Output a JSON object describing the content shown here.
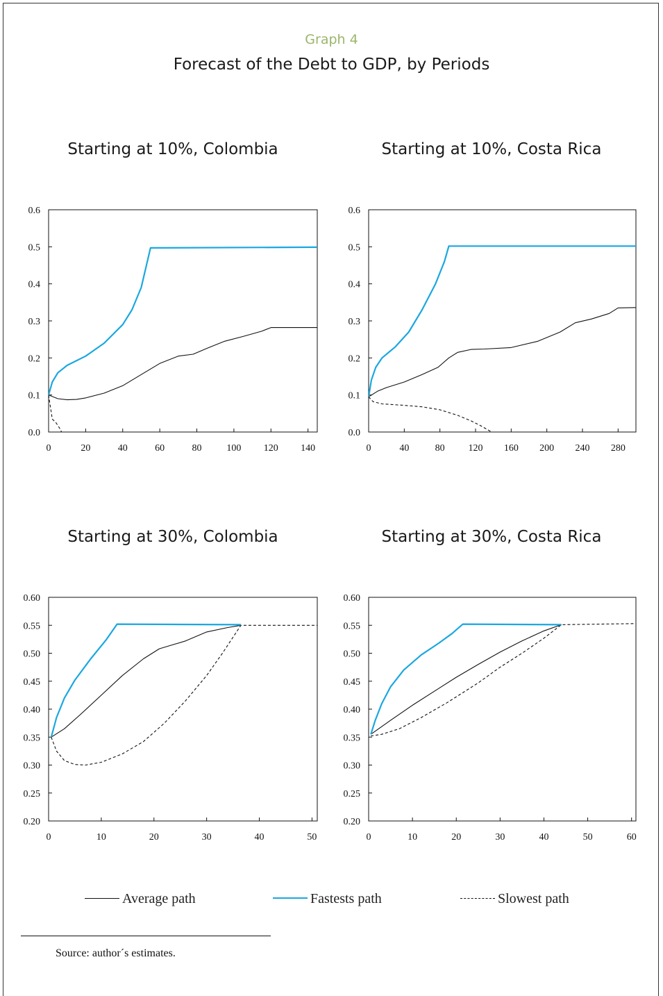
{
  "header": {
    "graph_label": "Graph 4",
    "title": "Forecast of the Debt to GDP, by Periods"
  },
  "colors": {
    "average": "#111111",
    "fastest": "#1aa7e0",
    "slowest": "#111111"
  },
  "legend": {
    "average": "Average path",
    "fastest": "Fastests path",
    "slowest": "Slowest path"
  },
  "footer": {
    "source": "Source: author´s estimates."
  },
  "chart_data": [
    {
      "type": "line",
      "title": "Starting at 10%, Colombia",
      "xlim": [
        0,
        145
      ],
      "ylim": [
        0.0,
        0.6
      ],
      "xticks": [
        0,
        20,
        40,
        60,
        80,
        100,
        120,
        140
      ],
      "yticks": [
        0.0,
        0.1,
        0.2,
        0.3,
        0.4,
        0.5,
        0.6
      ],
      "ytick_labels": [
        "0.0",
        "0.1",
        "0.2",
        "0.3",
        "0.4",
        "0.5",
        "0.6"
      ],
      "series": [
        {
          "name": "Average path",
          "style": "solid",
          "color": "#111111",
          "points": [
            [
              0,
              0.1
            ],
            [
              5,
              0.09
            ],
            [
              10,
              0.087
            ],
            [
              15,
              0.088
            ],
            [
              20,
              0.092
            ],
            [
              30,
              0.105
            ],
            [
              40,
              0.125
            ],
            [
              50,
              0.155
            ],
            [
              60,
              0.185
            ],
            [
              70,
              0.205
            ],
            [
              78,
              0.21
            ],
            [
              85,
              0.225
            ],
            [
              95,
              0.245
            ],
            [
              105,
              0.258
            ],
            [
              115,
              0.272
            ],
            [
              120,
              0.282
            ],
            [
              145,
              0.282
            ]
          ]
        },
        {
          "name": "Fastests path",
          "style": "solid",
          "color": "#1aa7e0",
          "points": [
            [
              0,
              0.1
            ],
            [
              2,
              0.135
            ],
            [
              5,
              0.16
            ],
            [
              10,
              0.18
            ],
            [
              20,
              0.205
            ],
            [
              30,
              0.24
            ],
            [
              40,
              0.29
            ],
            [
              45,
              0.33
            ],
            [
              50,
              0.39
            ],
            [
              55,
              0.497
            ],
            [
              145,
              0.499
            ]
          ]
        },
        {
          "name": "Slowest path",
          "style": "dashed",
          "color": "#111111",
          "points": [
            [
              0,
              0.1
            ],
            [
              2,
              0.035
            ],
            [
              4,
              0.025
            ],
            [
              6,
              0.01
            ],
            [
              7,
              0.0
            ]
          ]
        }
      ]
    },
    {
      "type": "line",
      "title": "Starting at 10%, Costa Rica",
      "xlim": [
        0,
        300
      ],
      "ylim": [
        0.0,
        0.6
      ],
      "xticks": [
        0,
        40,
        80,
        120,
        160,
        200,
        240,
        280
      ],
      "yticks": [
        0.0,
        0.1,
        0.2,
        0.3,
        0.4,
        0.5,
        0.6
      ],
      "ytick_labels": [
        "0.0",
        "0.1",
        "0.2",
        "0.3",
        "0.4",
        "0.5",
        "0.6"
      ],
      "series": [
        {
          "name": "Average path",
          "style": "solid",
          "color": "#111111",
          "points": [
            [
              0,
              0.095
            ],
            [
              10,
              0.11
            ],
            [
              20,
              0.12
            ],
            [
              40,
              0.135
            ],
            [
              60,
              0.155
            ],
            [
              78,
              0.175
            ],
            [
              90,
              0.2
            ],
            [
              100,
              0.215
            ],
            [
              115,
              0.223
            ],
            [
              130,
              0.224
            ],
            [
              160,
              0.228
            ],
            [
              190,
              0.245
            ],
            [
              215,
              0.27
            ],
            [
              232,
              0.295
            ],
            [
              250,
              0.305
            ],
            [
              270,
              0.32
            ],
            [
              280,
              0.335
            ],
            [
              300,
              0.336
            ]
          ]
        },
        {
          "name": "Fastests path",
          "style": "solid",
          "color": "#1aa7e0",
          "points": [
            [
              0,
              0.095
            ],
            [
              3,
              0.14
            ],
            [
              8,
              0.175
            ],
            [
              15,
              0.2
            ],
            [
              30,
              0.23
            ],
            [
              45,
              0.27
            ],
            [
              60,
              0.33
            ],
            [
              75,
              0.4
            ],
            [
              85,
              0.46
            ],
            [
              90,
              0.502
            ],
            [
              300,
              0.502
            ]
          ]
        },
        {
          "name": "Slowest path",
          "style": "dashed",
          "color": "#111111",
          "points": [
            [
              0,
              0.095
            ],
            [
              5,
              0.082
            ],
            [
              15,
              0.076
            ],
            [
              40,
              0.072
            ],
            [
              60,
              0.068
            ],
            [
              80,
              0.06
            ],
            [
              100,
              0.045
            ],
            [
              115,
              0.03
            ],
            [
              125,
              0.018
            ],
            [
              138,
              0.0
            ]
          ]
        }
      ]
    },
    {
      "type": "line",
      "title": "Starting at 30%, Colombia",
      "xlim": [
        0,
        51
      ],
      "ylim": [
        0.2,
        0.6
      ],
      "xticks": [
        0,
        10,
        20,
        30,
        40,
        50
      ],
      "yticks": [
        0.2,
        0.25,
        0.3,
        0.35,
        0.4,
        0.45,
        0.5,
        0.55,
        0.6
      ],
      "ytick_labels": [
        "0.20",
        "0.25",
        "0.30",
        "0.35",
        "0.40",
        "0.45",
        "0.50",
        "0.55",
        "0.60"
      ],
      "series": [
        {
          "name": "Average path",
          "style": "solid",
          "color": "#111111",
          "points": [
            [
              0.5,
              0.35
            ],
            [
              3,
              0.365
            ],
            [
              6,
              0.39
            ],
            [
              10,
              0.425
            ],
            [
              14,
              0.46
            ],
            [
              18,
              0.49
            ],
            [
              21,
              0.508
            ],
            [
              26,
              0.522
            ],
            [
              30,
              0.538
            ],
            [
              34,
              0.546
            ],
            [
              36.5,
              0.55
            ]
          ]
        },
        {
          "name": "Fastests path",
          "style": "solid",
          "color": "#1aa7e0",
          "points": [
            [
              0.5,
              0.35
            ],
            [
              1.5,
              0.385
            ],
            [
              3,
              0.42
            ],
            [
              5,
              0.452
            ],
            [
              8,
              0.49
            ],
            [
              11,
              0.525
            ],
            [
              13,
              0.552
            ],
            [
              36.5,
              0.551
            ]
          ]
        },
        {
          "name": "Slowest path",
          "style": "dashed",
          "color": "#111111",
          "points": [
            [
              0.5,
              0.35
            ],
            [
              1.5,
              0.325
            ],
            [
              3,
              0.308
            ],
            [
              5,
              0.301
            ],
            [
              7,
              0.3
            ],
            [
              10,
              0.305
            ],
            [
              14,
              0.32
            ],
            [
              18,
              0.342
            ],
            [
              22,
              0.375
            ],
            [
              26,
              0.415
            ],
            [
              30,
              0.46
            ],
            [
              33,
              0.5
            ],
            [
              36.5,
              0.55
            ],
            [
              51,
              0.55
            ]
          ]
        }
      ]
    },
    {
      "type": "line",
      "title": "Starting at 30%, Costa Rica",
      "xlim": [
        0,
        61
      ],
      "ylim": [
        0.2,
        0.6
      ],
      "xticks": [
        0,
        10,
        20,
        30,
        40,
        50,
        60
      ],
      "yticks": [
        0.2,
        0.25,
        0.3,
        0.35,
        0.4,
        0.45,
        0.5,
        0.55,
        0.6
      ],
      "ytick_labels": [
        "0.20",
        "0.25",
        "0.30",
        "0.35",
        "0.40",
        "0.45",
        "0.50",
        "0.55",
        "0.60"
      ],
      "series": [
        {
          "name": "Average path",
          "style": "solid",
          "color": "#111111",
          "points": [
            [
              0.5,
              0.355
            ],
            [
              5,
              0.38
            ],
            [
              10,
              0.407
            ],
            [
              15,
              0.432
            ],
            [
              20,
              0.457
            ],
            [
              25,
              0.48
            ],
            [
              30,
              0.502
            ],
            [
              35,
              0.522
            ],
            [
              40,
              0.54
            ],
            [
              44,
              0.551
            ]
          ]
        },
        {
          "name": "Fastests path",
          "style": "solid",
          "color": "#1aa7e0",
          "points": [
            [
              0.5,
              0.355
            ],
            [
              1.5,
              0.38
            ],
            [
              3,
              0.41
            ],
            [
              5,
              0.44
            ],
            [
              8,
              0.47
            ],
            [
              12,
              0.497
            ],
            [
              16,
              0.518
            ],
            [
              19,
              0.535
            ],
            [
              21.5,
              0.552
            ],
            [
              44,
              0.551
            ]
          ]
        },
        {
          "name": "Slowest path",
          "style": "dashed",
          "color": "#111111",
          "points": [
            [
              0.5,
              0.352
            ],
            [
              3,
              0.355
            ],
            [
              7,
              0.365
            ],
            [
              12,
              0.385
            ],
            [
              18,
              0.412
            ],
            [
              25,
              0.447
            ],
            [
              30,
              0.475
            ],
            [
              35,
              0.5
            ],
            [
              40,
              0.527
            ],
            [
              44,
              0.551
            ],
            [
              61,
              0.553
            ]
          ]
        }
      ]
    }
  ]
}
